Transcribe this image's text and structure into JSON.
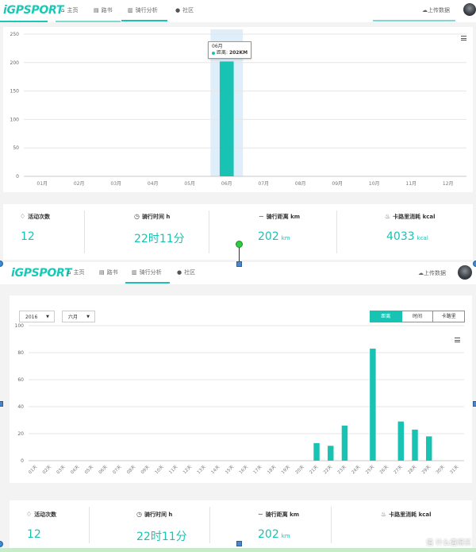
{
  "top": {
    "logo": "iGPSPORT",
    "nav": [
      {
        "icon": "home-icon",
        "glyph": "⌂",
        "label": "主页"
      },
      {
        "icon": "book-icon",
        "glyph": "▤",
        "label": "路书"
      },
      {
        "icon": "chart-icon",
        "glyph": "▥",
        "label": "骑行分析",
        "active": true
      },
      {
        "icon": "chat-icon",
        "glyph": "●",
        "label": "社区"
      }
    ],
    "upload": "上传数据",
    "tooltip": {
      "title": "06月",
      "series": "距离",
      "value": "202KM"
    },
    "stats": [
      {
        "icon": "activity-icon",
        "glyph": "♢",
        "label": "活动次数",
        "value": "12",
        "unit": ""
      },
      {
        "icon": "clock-icon",
        "glyph": "◷",
        "label": "骑行时间 h",
        "value": "22时11分",
        "unit": ""
      },
      {
        "icon": "distance-icon",
        "glyph": "∼",
        "label": "骑行距离 km",
        "value": "202",
        "unit": "km"
      },
      {
        "icon": "fire-icon",
        "glyph": "♨",
        "label": "卡路里消耗 kcal",
        "value": "4033",
        "unit": "kcal"
      }
    ]
  },
  "bottom": {
    "logo": "iGPSPORT",
    "nav": [
      {
        "icon": "home-icon",
        "glyph": "⌂",
        "label": "主页"
      },
      {
        "icon": "book-icon",
        "glyph": "▤",
        "label": "路书"
      },
      {
        "icon": "chart-icon",
        "glyph": "▥",
        "label": "骑行分析",
        "active": true
      },
      {
        "icon": "chat-icon",
        "glyph": "●",
        "label": "社区"
      }
    ],
    "upload": "上传数据",
    "year_select": "2016",
    "month_select": "六月",
    "toggles": [
      "距离",
      "时间",
      "卡路里"
    ],
    "active_toggle": "距离",
    "stats": [
      {
        "icon": "activity-icon",
        "glyph": "♢",
        "label": "活动次数",
        "value": "12",
        "unit": ""
      },
      {
        "icon": "clock-icon",
        "glyph": "◷",
        "label": "骑行时间 h",
        "value": "22时11分",
        "unit": ""
      },
      {
        "icon": "distance-icon",
        "glyph": "∼",
        "label": "骑行距离 km",
        "value": "202",
        "unit": "km"
      },
      {
        "icon": "fire-icon",
        "glyph": "♨",
        "label": "卡路里消耗 kcal",
        "value": "",
        "unit": ""
      }
    ],
    "watermark": "值 什么值得买"
  },
  "colors": {
    "accent": "#19c3b3",
    "highlight": "#dfeefb",
    "grid": "#e6e6e6"
  },
  "chart_data": [
    {
      "type": "bar",
      "categories": [
        "01月",
        "02月",
        "03月",
        "04月",
        "05月",
        "06月",
        "07月",
        "08月",
        "09月",
        "10月",
        "11月",
        "12月"
      ],
      "values": [
        0,
        0,
        0,
        0,
        0,
        202,
        0,
        0,
        0,
        0,
        0,
        0
      ],
      "yticks": [
        0,
        50,
        100,
        150,
        200,
        250
      ],
      "ylim": [
        0,
        250
      ],
      "highlight_index": 5,
      "grid": true
    },
    {
      "type": "bar",
      "categories": [
        "01天",
        "02天",
        "03天",
        "04天",
        "05天",
        "06天",
        "07天",
        "08天",
        "09天",
        "10天",
        "11天",
        "12天",
        "13天",
        "14天",
        "15天",
        "16天",
        "17天",
        "18天",
        "19天",
        "20天",
        "21天",
        "22天",
        "23天",
        "24天",
        "25天",
        "26天",
        "27天",
        "28天",
        "29天",
        "30天",
        "31天"
      ],
      "values": [
        0,
        0,
        0,
        0,
        0,
        0,
        0,
        0,
        0,
        0,
        0,
        0,
        0,
        0,
        0,
        0,
        0,
        0,
        0,
        0,
        13,
        11,
        26,
        0,
        83,
        0,
        29,
        23,
        18,
        0,
        0
      ],
      "yticks": [
        0,
        20,
        40,
        60,
        80,
        100
      ],
      "ylim": [
        0,
        100
      ],
      "grid": true
    }
  ]
}
